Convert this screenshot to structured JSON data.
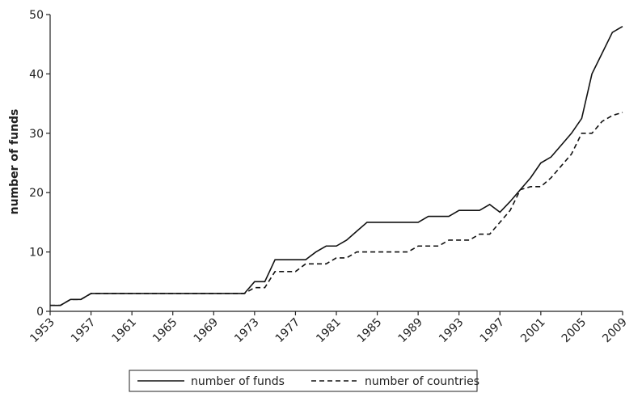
{
  "chart_data": {
    "type": "line",
    "y_label": "number of funds",
    "x": [
      1953,
      1954,
      1955,
      1956,
      1957,
      1958,
      1959,
      1960,
      1961,
      1962,
      1963,
      1964,
      1965,
      1966,
      1967,
      1968,
      1969,
      1970,
      1971,
      1972,
      1973,
      1974,
      1975,
      1976,
      1977,
      1978,
      1979,
      1980,
      1981,
      1982,
      1983,
      1984,
      1985,
      1986,
      1987,
      1988,
      1989,
      1990,
      1991,
      1992,
      1993,
      1994,
      1995,
      1996,
      1997,
      1998,
      1999,
      2000,
      2001,
      2002,
      2003,
      2004,
      2005,
      2006,
      2007,
      2008,
      2009
    ],
    "series": [
      {
        "name": "number of funds",
        "color": "#111111",
        "linestyle": "solid",
        "values": [
          1,
          1,
          2,
          2,
          3,
          3,
          3,
          3,
          3,
          3,
          3,
          3,
          3,
          3,
          3,
          3,
          3,
          3,
          3,
          3,
          5,
          5,
          8.7,
          8.7,
          8.7,
          8.7,
          10,
          11,
          11,
          12,
          13.5,
          15,
          15,
          15,
          15,
          15,
          15,
          16,
          16,
          16,
          17,
          17,
          17,
          18,
          16.7,
          18.5,
          20.5,
          22.5,
          25,
          26,
          28,
          30,
          32.5,
          40,
          43.5,
          47,
          48
        ]
      },
      {
        "name": "number of countries",
        "color": "#111111",
        "linestyle": "dashed",
        "values": [
          1,
          1,
          2,
          2,
          3,
          3,
          3,
          3,
          3,
          3,
          3,
          3,
          3,
          3,
          3,
          3,
          3,
          3,
          3,
          3,
          4,
          4,
          6.7,
          6.7,
          6.7,
          8,
          8,
          8,
          9,
          9,
          10,
          10,
          10,
          10,
          10,
          10,
          11,
          11,
          11,
          12,
          12,
          12,
          13,
          13,
          15,
          17,
          20.5,
          21,
          21,
          22.5,
          24.5,
          26.5,
          30,
          30,
          32,
          33,
          33.5
        ]
      }
    ],
    "xlim": [
      1953,
      2009
    ],
    "xticks": [
      1953,
      1957,
      1961,
      1965,
      1969,
      1973,
      1977,
      1981,
      1985,
      1989,
      1993,
      1997,
      2001,
      2005,
      2009
    ],
    "ylim": [
      0,
      50
    ],
    "yticks": [
      0,
      10,
      20,
      30,
      40,
      50
    ],
    "legend": "bottom"
  }
}
